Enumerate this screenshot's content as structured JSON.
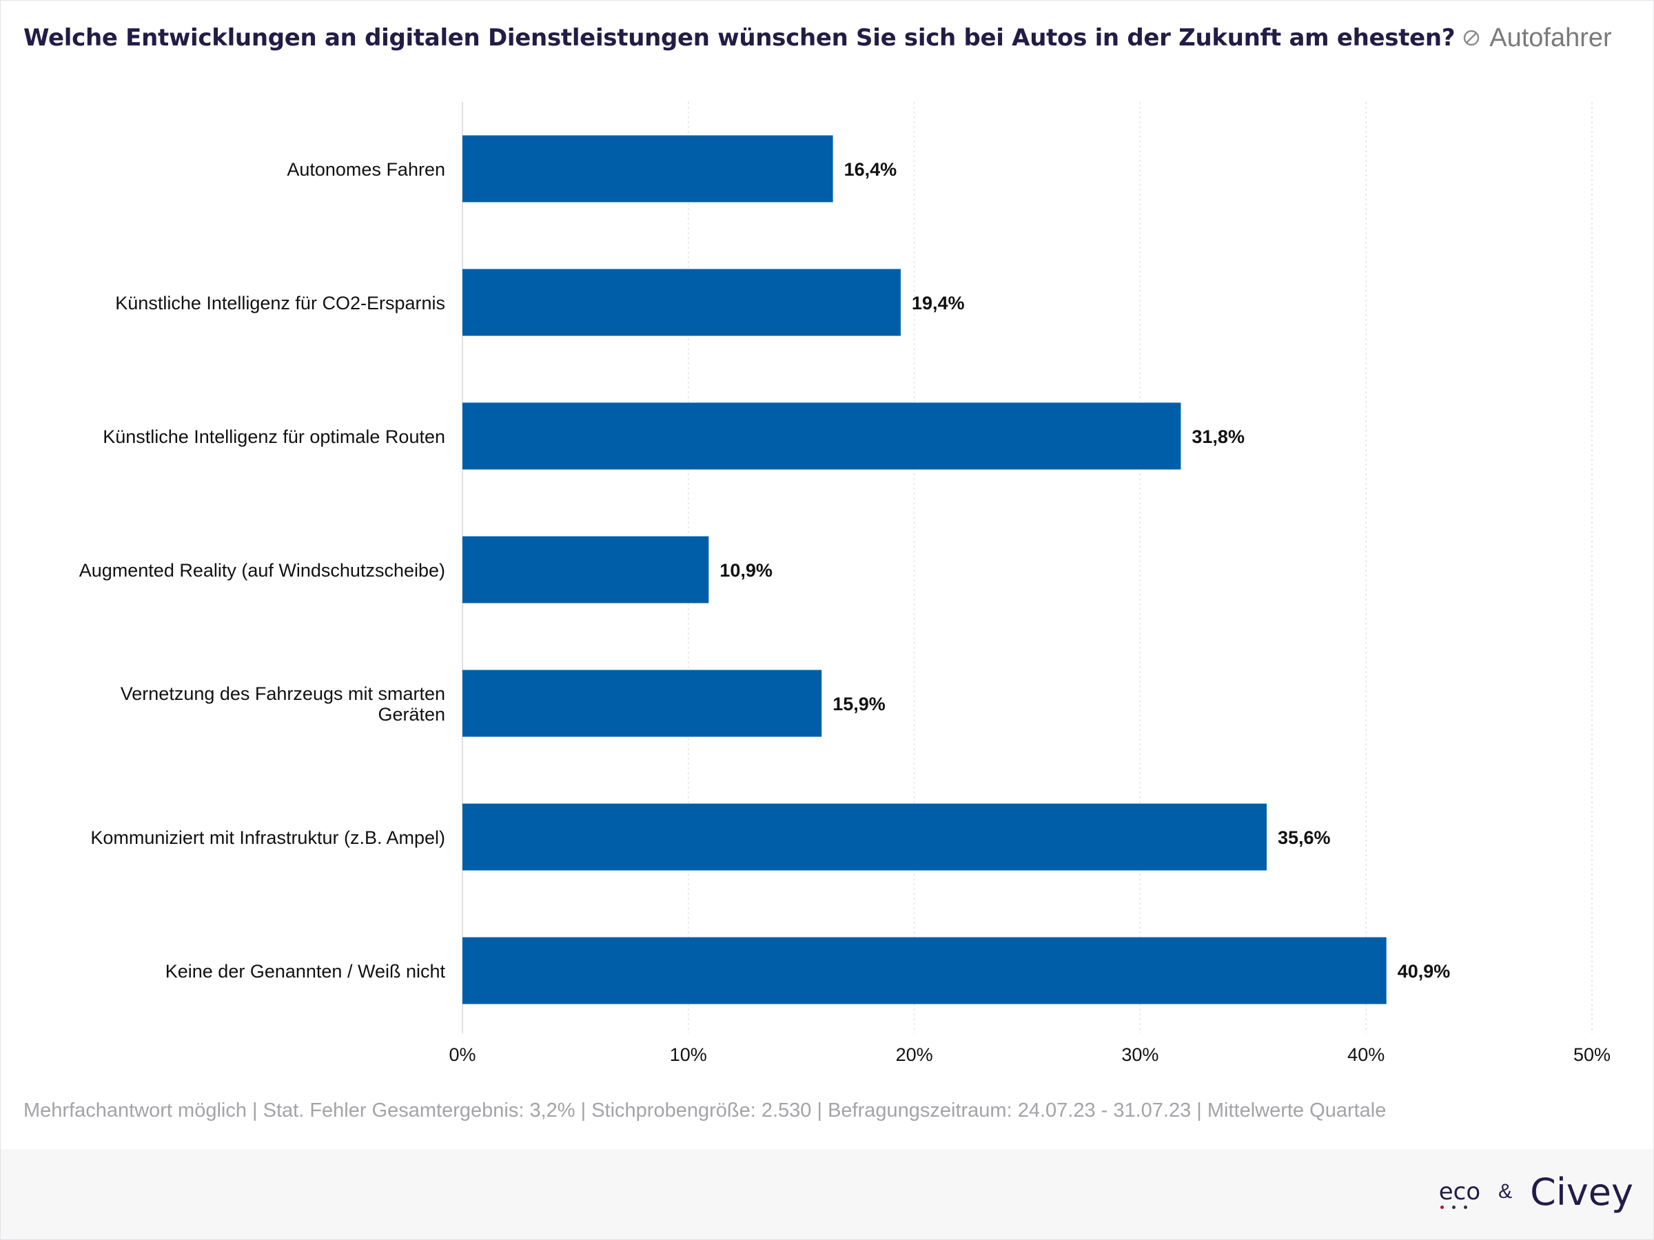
{
  "header": {
    "title": "Welche Entwicklungen an digitalen Dienstleistungen wünschen Sie sich bei Autos in der Zukunft am ehesten?",
    "filter_icon": "filter-slash-icon",
    "subtitle": "Autofahrer"
  },
  "chart_data": {
    "type": "bar",
    "orientation": "horizontal",
    "title": "Welche Entwicklungen an digitalen Dienstleistungen wünschen Sie sich bei Autos in der Zukunft am ehesten?",
    "categories": [
      [
        "Autonomes Fahren"
      ],
      [
        "Künstliche Intelligenz für CO2-Ersparnis"
      ],
      [
        "Künstliche Intelligenz für optimale Routen"
      ],
      [
        "Augmented Reality (auf Windschutzscheibe)"
      ],
      [
        "Vernetzung des Fahrzeugs mit smarten",
        "Geräten"
      ],
      [
        "Kommuniziert mit Infrastruktur (z.B. Ampel)"
      ],
      [
        "Keine der Genannten / Weiß nicht"
      ]
    ],
    "values": [
      16.4,
      19.4,
      31.8,
      10.9,
      15.9,
      35.6,
      40.9
    ],
    "value_labels": [
      "16,4%",
      "19,4%",
      "31,8%",
      "10,9%",
      "15,9%",
      "35,6%",
      "40,9%"
    ],
    "xlim": [
      0,
      50
    ],
    "xticks": [
      0,
      10,
      20,
      30,
      40,
      50
    ],
    "xtick_labels": [
      "0%",
      "10%",
      "20%",
      "30%",
      "40%",
      "50%"
    ],
    "grid": true,
    "bar_color": "#005ea8"
  },
  "footer": {
    "note": "Mehrfachantwort möglich | Stat. Fehler Gesamtergebnis: 3,2% | Stichprobengröße: 2.530 | Befragungszeitraum: 24.07.23 - 31.07.23 | Mittelwerte Quartale"
  },
  "branding": {
    "eco": "eco",
    "amp": "&",
    "civey": "Civey"
  }
}
